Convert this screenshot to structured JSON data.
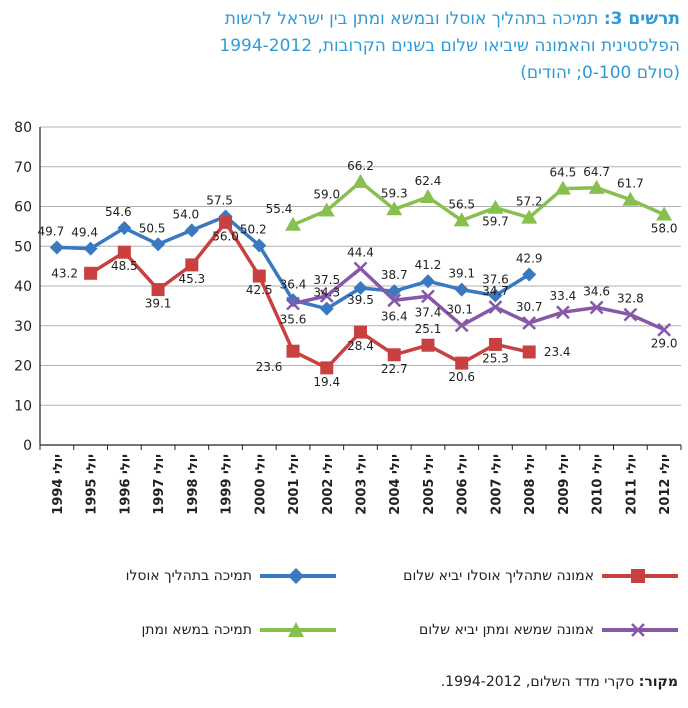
{
  "title": {
    "label": "תרשים 3:",
    "line1": "תמיכה בתהליך אוסלו ובמשא ומתן בין ישראל לרשות",
    "line2": "הפלסטינית והאמונה שיביאו שלום בשנים הקרובות, 1994-2012",
    "line3": "(סולם 0-100; יהודים)"
  },
  "chart_data": {
    "type": "line",
    "categories": [
      "יולי 1994",
      "יולי 1995",
      "יולי 1996",
      "יולי 1997",
      "יולי 1998",
      "יולי 1999",
      "יולי 2000",
      "יולי 2001",
      "יולי 2002",
      "יולי 2003",
      "יולי 2004",
      "יולי 2005",
      "יולי 2006",
      "יולי 2007",
      "יולי 2008",
      "יולי 2009",
      "יולי 2010",
      "יולי 2011",
      "יולי 2012"
    ],
    "ylim": [
      0,
      80
    ],
    "yticks": [
      "0",
      "10",
      "20",
      "30",
      "40",
      "50",
      "60",
      "70",
      "80"
    ],
    "grid": true,
    "series": [
      {
        "name": "תמיכה בתהליך אוסלו",
        "color": "#3a78c0",
        "marker": "diamond",
        "values": [
          49.7,
          49.4,
          54.6,
          50.5,
          54.0,
          57.5,
          50.2,
          36.4,
          34.3,
          39.5,
          38.7,
          41.2,
          39.1,
          37.6,
          42.9,
          null,
          null,
          null,
          null
        ],
        "labels": [
          "49.7",
          "49.4",
          "54.6",
          "50.5",
          "54.0",
          "57.5",
          "50.2",
          "36.4",
          "34.3",
          "39.5",
          "38.7",
          "41.2",
          "39.1",
          "37.6",
          "42.9",
          null,
          null,
          null,
          null
        ]
      },
      {
        "name": "אמונה שתהליך אוסלו יביא שלום",
        "color": "#c8403f",
        "marker": "square",
        "values": [
          null,
          43.2,
          48.5,
          39.1,
          45.3,
          56.0,
          42.5,
          23.6,
          19.4,
          28.4,
          22.7,
          25.1,
          20.6,
          25.3,
          23.4,
          null,
          null,
          null,
          null
        ],
        "labels": [
          null,
          "43.2",
          "48.5",
          "39.1",
          "45.3",
          "56.0",
          "42.5",
          "23.6",
          "19.4",
          "28.4",
          "22.7",
          "25.1",
          "20.6",
          "25.3",
          "23.4",
          null,
          null,
          null,
          null
        ]
      },
      {
        "name": "תמיכה במשא ומתן",
        "color": "#88c050",
        "marker": "triangle",
        "values": [
          null,
          null,
          null,
          null,
          null,
          null,
          null,
          55.4,
          59.0,
          66.2,
          59.3,
          62.4,
          56.5,
          59.7,
          57.2,
          64.5,
          64.7,
          61.7,
          58.0
        ],
        "labels": [
          null,
          null,
          null,
          null,
          null,
          null,
          null,
          "55.4",
          "59.0",
          "66.2",
          "59.3",
          "62.4",
          "56.5",
          "59.7",
          "57.2",
          "64.5",
          "64.7",
          "61.7",
          "58.0"
        ]
      },
      {
        "name": "אמונה שמשא ומתן יביא שלום",
        "color": "#8758a8",
        "marker": "x",
        "values": [
          null,
          null,
          null,
          null,
          null,
          null,
          null,
          35.6,
          37.5,
          44.4,
          36.4,
          37.4,
          30.1,
          34.7,
          30.7,
          33.4,
          34.6,
          32.8,
          29.0
        ],
        "labels": [
          null,
          null,
          null,
          null,
          null,
          null,
          null,
          "35.6",
          "37.5",
          "44.4",
          "36.4",
          "37.4",
          "30.1",
          "34.7",
          "30.7",
          "33.4",
          "34.6",
          "32.8",
          "29.0"
        ]
      }
    ]
  },
  "legend": {
    "items": [
      {
        "text": "אמונה שתהליך אוסלו יביא שלום",
        "series": 1
      },
      {
        "text": "תמיכה בתהליך אוסלו",
        "series": 0
      },
      {
        "text": "אמונה שמשא ומתן יביא שלום",
        "series": 3
      },
      {
        "text": "תמיכה במשא ומתן",
        "series": 2
      }
    ]
  },
  "source": {
    "label": "מקור:",
    "text": "סקרי מדד השלום, 1994-2012."
  }
}
